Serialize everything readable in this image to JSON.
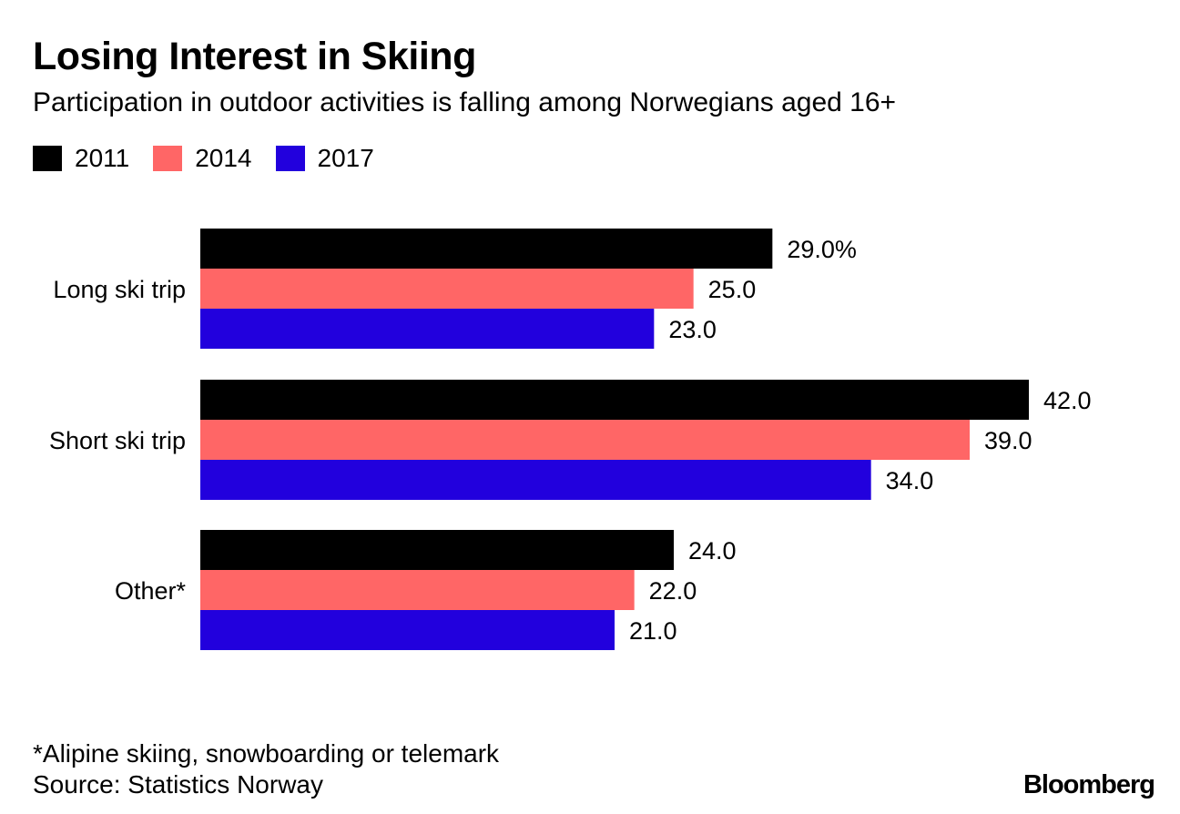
{
  "chart_data": {
    "type": "bar",
    "orientation": "horizontal",
    "title": "Losing Interest in Skiing",
    "subtitle": "Participation in outdoor activities is falling among Norwegians aged 16+",
    "unit": "%",
    "categories": [
      "Long ski trip",
      "Short ski trip",
      "Other*"
    ],
    "series": [
      {
        "name": "2011",
        "color": "#000000",
        "values": [
          29.0,
          42.0,
          24.0
        ],
        "labels": [
          "29.0%",
          "42.0",
          "24.0"
        ]
      },
      {
        "name": "2014",
        "color": "#ff6666",
        "values": [
          25.0,
          39.0,
          22.0
        ],
        "labels": [
          "25.0",
          "39.0",
          "22.0"
        ]
      },
      {
        "name": "2017",
        "color": "#2200dd",
        "values": [
          23.0,
          34.0,
          21.0
        ],
        "labels": [
          "23.0",
          "34.0",
          "21.0"
        ]
      }
    ],
    "xlim": [
      0,
      42
    ],
    "grid": false,
    "legend": "top-left"
  },
  "footnote": "*Alipine skiing, snowboarding or telemark",
  "source": "Source: Statistics Norway",
  "brand": "Bloomberg"
}
